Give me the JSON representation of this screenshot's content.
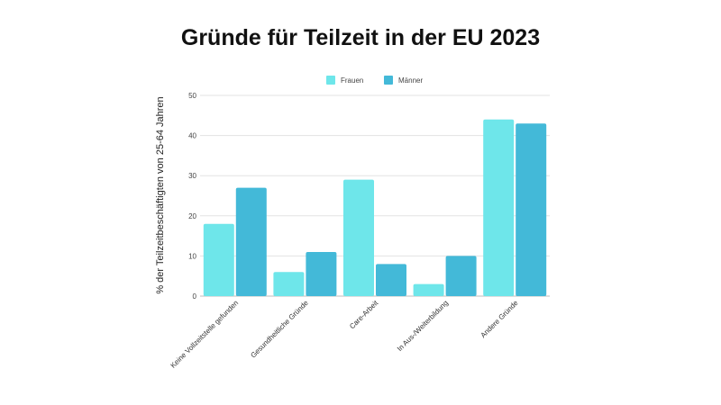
{
  "chart_data": {
    "type": "bar",
    "title": "Gründe für Teilzeit in der EU 2023",
    "ylabel": "% der Teilzeitbeschäftigten von 25-64 Jahren",
    "xlabel": "",
    "ylim": [
      0,
      50
    ],
    "yticks": [
      0,
      10,
      20,
      30,
      40,
      50
    ],
    "grid": true,
    "legend_position": "top-center",
    "categories": [
      "Keine Vollzeitstelle gefunden",
      "Gesundheitliche Gründe",
      "Care-Arbeit",
      "In Aus-/Weiterbildung",
      "Andere Gründe"
    ],
    "series": [
      {
        "name": "Frauen",
        "color": "#6ee6ea",
        "values": [
          18,
          6,
          29,
          3,
          44
        ]
      },
      {
        "name": "Männer",
        "color": "#43b9d8",
        "values": [
          27,
          11,
          8,
          10,
          43
        ]
      }
    ]
  }
}
